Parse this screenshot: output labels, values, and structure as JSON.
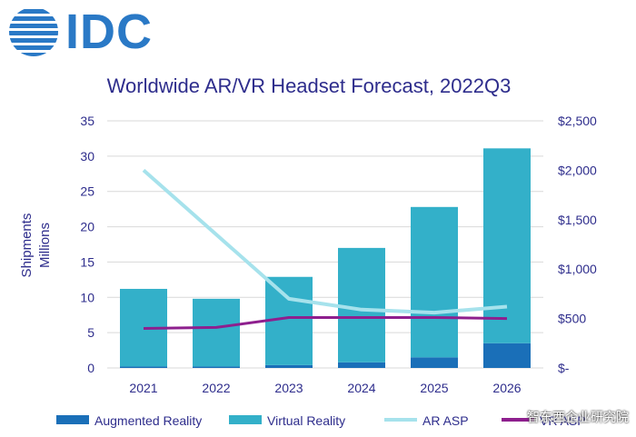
{
  "logo": {
    "text": "IDC"
  },
  "chart_data": {
    "type": "bar",
    "title": "Worldwide AR/VR Headset Forecast, 2022Q3",
    "categories": [
      "2021",
      "2022",
      "2023",
      "2024",
      "2025",
      "2026"
    ],
    "ylabel": "Shipments Millions",
    "ylabel_lines": [
      "Shipments",
      "Millions"
    ],
    "ylim": [
      0,
      35
    ],
    "yticks": [
      "0",
      "5",
      "10",
      "15",
      "20",
      "25",
      "30",
      "35"
    ],
    "y2lim": [
      0,
      2500
    ],
    "y2ticks": [
      "$-",
      "$500",
      "$1,000",
      "$1,500",
      "$2,000",
      "$2,500"
    ],
    "stacked": true,
    "series": [
      {
        "name": "Augmented Reality",
        "kind": "bar",
        "axis": "left",
        "color": "#1a6fb8",
        "values": [
          0.2,
          0.2,
          0.4,
          0.8,
          1.5,
          3.5
        ]
      },
      {
        "name": "Virtual Reality",
        "kind": "bar",
        "axis": "left",
        "color": "#33b0c9",
        "values": [
          11.0,
          9.6,
          12.5,
          16.2,
          21.3,
          27.6
        ]
      },
      {
        "name": "AR ASP",
        "kind": "line",
        "axis": "right",
        "color": "#a6e2ec",
        "values": [
          2000,
          1350,
          700,
          590,
          560,
          620
        ]
      },
      {
        "name": "VR ASP",
        "kind": "line",
        "axis": "right",
        "color": "#8e1f8e",
        "values": [
          400,
          410,
          510,
          510,
          510,
          500
        ]
      }
    ],
    "legend": [
      "Augmented Reality",
      "Virtual Reality",
      "AR ASP",
      "VR ASP"
    ],
    "legend_position": "bottom",
    "grid": true
  },
  "watermark": {
    "text": "智东西企业研究院"
  }
}
